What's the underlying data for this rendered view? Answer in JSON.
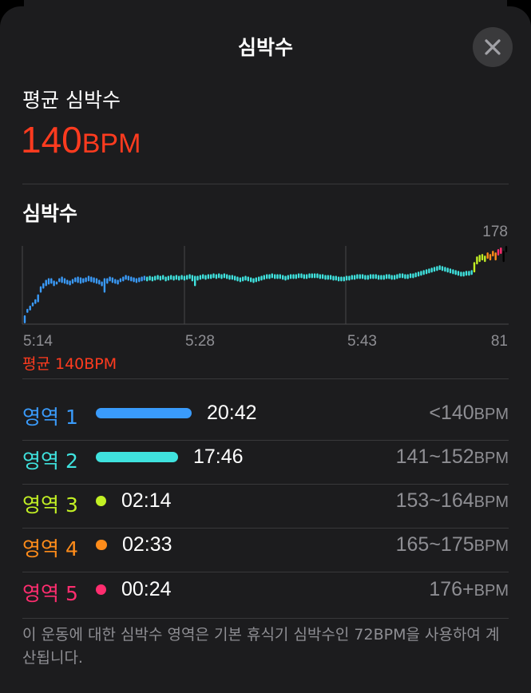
{
  "header": {
    "title": "심박수",
    "close_icon": "close-icon"
  },
  "average": {
    "label": "평균 심박수",
    "value": "140",
    "unit": "BPM",
    "color": "#ff3b1f"
  },
  "chart": {
    "title": "심박수",
    "avg_label": "평균 140BPM"
  },
  "chart_data": {
    "type": "bar",
    "title": "심박수",
    "x_ticks": [
      "5:14",
      "5:28",
      "5:43"
    ],
    "ylim": [
      81,
      178
    ],
    "y_ticks": [
      "178",
      "81"
    ],
    "average": 140,
    "series": [
      {
        "zone": [
          1,
          1,
          1,
          1,
          1,
          1,
          1,
          1,
          1,
          1,
          1,
          1,
          1,
          1,
          1,
          1,
          1,
          1,
          1,
          1,
          1,
          1,
          1,
          1,
          1,
          1,
          1,
          1,
          1,
          1,
          1,
          1,
          1,
          1,
          1,
          1,
          1,
          1,
          1,
          1,
          1,
          1,
          1,
          1,
          1,
          1,
          2,
          2,
          2,
          2,
          2,
          2,
          2,
          2,
          2,
          2,
          2,
          2,
          2,
          2,
          2,
          2,
          2,
          2,
          2,
          2,
          2,
          2,
          2,
          2,
          2,
          2,
          2,
          2,
          2,
          2,
          2,
          2,
          2,
          2,
          2,
          2,
          2,
          2,
          2,
          2,
          2,
          2,
          2,
          2,
          2,
          2,
          2,
          2,
          2,
          2,
          2,
          2,
          2,
          2,
          2,
          2,
          2,
          2,
          2,
          2,
          2,
          2,
          2,
          2,
          2,
          2,
          2,
          2,
          2,
          2,
          2,
          2,
          2,
          2,
          2,
          2,
          2,
          2,
          2,
          2,
          2,
          2,
          2,
          2,
          2,
          2,
          2,
          2,
          2,
          2,
          2,
          2,
          2,
          2,
          2,
          2,
          2,
          2,
          2,
          2,
          2,
          2,
          2,
          2,
          2,
          2,
          2,
          2,
          2,
          2,
          2,
          2,
          2,
          2,
          2,
          2,
          2,
          2,
          2,
          2,
          2,
          2,
          2,
          3,
          3,
          3,
          3,
          3,
          4,
          4,
          4,
          4,
          5,
          5
        ],
        "lo": [
          82,
          95,
          98,
          103,
          106,
          108,
          120,
          125,
          128,
          130,
          131,
          128,
          130,
          133,
          132,
          131,
          130,
          129,
          131,
          133,
          132,
          131,
          132,
          133,
          134,
          133,
          132,
          131,
          130,
          128,
          120,
          131,
          134,
          132,
          131,
          130,
          133,
          134,
          136,
          135,
          134,
          133,
          132,
          133,
          134,
          135,
          134,
          135,
          134,
          135,
          136,
          135,
          136,
          134,
          135,
          136,
          135,
          136,
          135,
          136,
          135,
          136,
          137,
          134,
          128,
          135,
          136,
          137,
          136,
          137,
          137,
          138,
          137,
          138,
          137,
          138,
          137,
          136,
          136,
          135,
          134,
          133,
          134,
          135,
          134,
          133,
          132,
          133,
          134,
          135,
          136,
          137,
          137,
          138,
          137,
          137,
          137,
          136,
          135,
          136,
          137,
          137,
          137,
          138,
          138,
          137,
          137,
          138,
          138,
          138,
          138,
          137,
          137,
          136,
          136,
          136,
          135,
          135,
          134,
          134,
          134,
          135,
          135,
          136,
          136,
          137,
          137,
          137,
          136,
          136,
          137,
          137,
          137,
          136,
          136,
          136,
          137,
          137,
          136,
          136,
          137,
          138,
          138,
          137,
          137,
          138,
          138,
          139,
          140,
          141,
          142,
          143,
          144,
          145,
          146,
          147,
          148,
          147,
          146,
          145,
          144,
          143,
          142,
          141,
          140,
          140,
          141,
          141,
          142,
          145,
          155,
          158,
          160,
          158,
          162,
          160,
          165,
          160,
          166,
          168,
          158,
          170
        ],
        "hi": [
          92,
          100,
          104,
          108,
          112,
          118,
          128,
          132,
          136,
          138,
          138,
          135,
          134,
          138,
          140,
          138,
          136,
          135,
          137,
          139,
          140,
          139,
          138,
          139,
          141,
          140,
          139,
          138,
          136,
          134,
          138,
          138,
          140,
          139,
          137,
          136,
          138,
          140,
          142,
          141,
          140,
          139,
          138,
          139,
          140,
          141,
          140,
          141,
          140,
          141,
          142,
          141,
          142,
          140,
          141,
          142,
          141,
          142,
          141,
          142,
          141,
          142,
          143,
          142,
          141,
          141,
          142,
          143,
          142,
          143,
          143,
          144,
          143,
          144,
          143,
          144,
          143,
          142,
          142,
          141,
          140,
          139,
          140,
          141,
          140,
          139,
          138,
          139,
          140,
          141,
          142,
          143,
          143,
          144,
          143,
          143,
          143,
          142,
          141,
          142,
          143,
          143,
          143,
          144,
          144,
          143,
          143,
          144,
          144,
          144,
          144,
          143,
          143,
          142,
          142,
          142,
          141,
          141,
          140,
          140,
          140,
          141,
          141,
          142,
          142,
          143,
          143,
          143,
          142,
          142,
          143,
          143,
          143,
          142,
          142,
          142,
          143,
          143,
          142,
          142,
          143,
          144,
          144,
          143,
          143,
          144,
          144,
          145,
          146,
          147,
          148,
          149,
          150,
          151,
          152,
          153,
          154,
          153,
          152,
          151,
          150,
          149,
          148,
          147,
          146,
          146,
          147,
          147,
          148,
          158,
          165,
          167,
          168,
          166,
          170,
          168,
          172,
          170,
          174,
          176,
          172,
          178
        ]
      }
    ]
  },
  "zones": [
    {
      "label": "영역 1",
      "time": "20:42",
      "range": "<140",
      "unit": "BPM",
      "color": "#3a9bfb",
      "fraction": 0.21
    },
    {
      "label": "영역 2",
      "time": "17:46",
      "range": "141~152",
      "unit": "BPM",
      "color": "#3fe2de",
      "fraction": 0.18
    },
    {
      "label": "영역 3",
      "time": "02:14",
      "range": "153~164",
      "unit": "BPM",
      "color": "#c2f024",
      "fraction": 0.022
    },
    {
      "label": "영역 4",
      "time": "02:33",
      "range": "165~175",
      "unit": "BPM",
      "color": "#ff8c1a",
      "fraction": 0.025
    },
    {
      "label": "영역 5",
      "time": "00:24",
      "range": "176+",
      "unit": "BPM",
      "color": "#ff2d6f",
      "fraction": 0.004
    }
  ],
  "footnote": "이 운동에 대한 심박수 영역은 기본 휴식기 심박수인 72BPM을 사용하여 계산됩니다.",
  "colors": {
    "background": "#1c1c1e",
    "divider": "#38383a",
    "secondary_text": "#8e8e93"
  }
}
